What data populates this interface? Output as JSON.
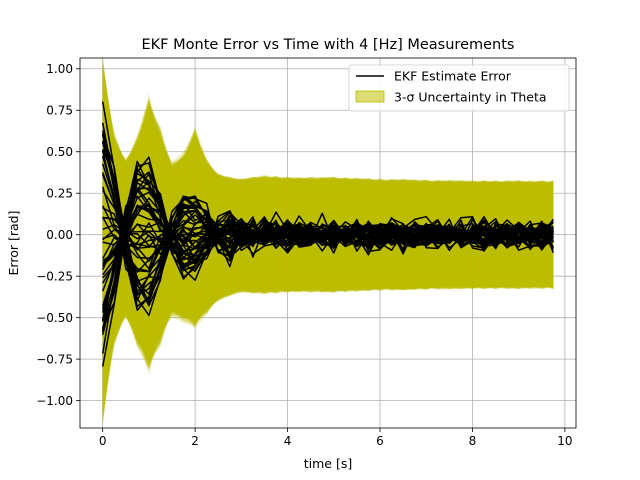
{
  "chart_data": {
    "type": "line",
    "title": "EKF Monte Error vs Time with 4 [Hz] Measurements",
    "xlabel": "time [s]",
    "ylabel": "Error [rad]",
    "xlim": [
      -0.49,
      10.24
    ],
    "ylim": [
      -1.165,
      1.065
    ],
    "xticks": [
      0,
      2,
      4,
      6,
      8,
      10
    ],
    "xtick_labels": [
      "0",
      "2",
      "4",
      "6",
      "8",
      "10"
    ],
    "yticks": [
      -1.0,
      -0.75,
      -0.5,
      -0.25,
      0.0,
      0.25,
      0.5,
      0.75,
      1.0
    ],
    "ytick_labels": [
      "−1.00",
      "−0.75",
      "−0.50",
      "−0.25",
      "0.00",
      "0.25",
      "0.50",
      "0.75",
      "1.00"
    ],
    "grid": true,
    "legend_position": "top-right",
    "legend": [
      {
        "label": "EKF Estimate Error",
        "kind": "line",
        "color": "#000000"
      },
      {
        "label": "3-σ Uncertainty in Theta",
        "kind": "band",
        "color": "#bfbf00"
      }
    ],
    "sample_period_s": 0.25,
    "t_end_s": 9.75,
    "num_runs": 50,
    "band": {
      "color": "#bfbf00",
      "opacity": 0.55,
      "sigma_envelope": {
        "t": [
          0.0,
          0.25,
          0.5,
          0.75,
          1.0,
          1.25,
          1.5,
          1.75,
          2.0,
          2.25,
          2.5,
          2.75,
          3.0,
          3.5,
          4.0,
          5.0,
          6.0,
          8.0,
          9.75
        ],
        "upper": [
          0.98,
          0.55,
          0.42,
          0.55,
          0.76,
          0.58,
          0.4,
          0.45,
          0.6,
          0.42,
          0.35,
          0.33,
          0.32,
          0.34,
          0.33,
          0.33,
          0.32,
          0.31,
          0.31
        ],
        "lower": [
          -1.05,
          -0.6,
          -0.46,
          -0.62,
          -0.75,
          -0.6,
          -0.45,
          -0.48,
          -0.52,
          -0.44,
          -0.38,
          -0.35,
          -0.33,
          -0.34,
          -0.33,
          -0.33,
          -0.32,
          -0.31,
          -0.31
        ]
      }
    },
    "error_series_color": "#000000"
  }
}
